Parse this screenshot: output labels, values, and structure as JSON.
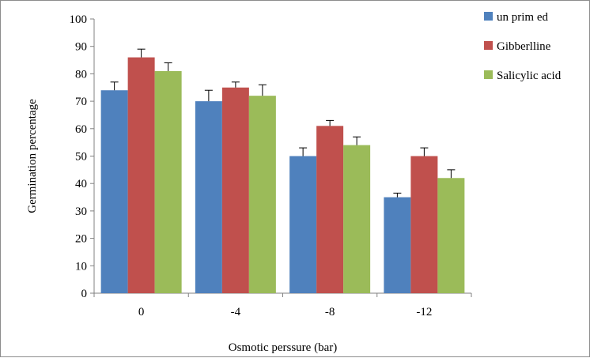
{
  "chart_data": {
    "type": "bar",
    "categories": [
      "0",
      "-4",
      "-8",
      "-12"
    ],
    "series": [
      {
        "name": "un prim ed",
        "color": "#4f81bd",
        "values": [
          74,
          70,
          50,
          35
        ],
        "errors": [
          3,
          4,
          3,
          1.5
        ]
      },
      {
        "name": "Gibberlline",
        "color": "#c0504d",
        "values": [
          86,
          75,
          61,
          50
        ],
        "errors": [
          3,
          2,
          2,
          3
        ]
      },
      {
        "name": "Salicylic acid",
        "color": "#9bbb59",
        "values": [
          81,
          72,
          54,
          42
        ],
        "errors": [
          3,
          4,
          3,
          3
        ]
      }
    ],
    "xlabel": "Osmotic perssure (bar)",
    "ylabel": "Germination  percentage",
    "ylim": [
      0,
      100
    ],
    "yticks": [
      "0",
      "10",
      "20",
      "30",
      "40",
      "50",
      "60",
      "70",
      "80",
      "90",
      "100"
    ],
    "grid": false,
    "legend": "top-right"
  }
}
